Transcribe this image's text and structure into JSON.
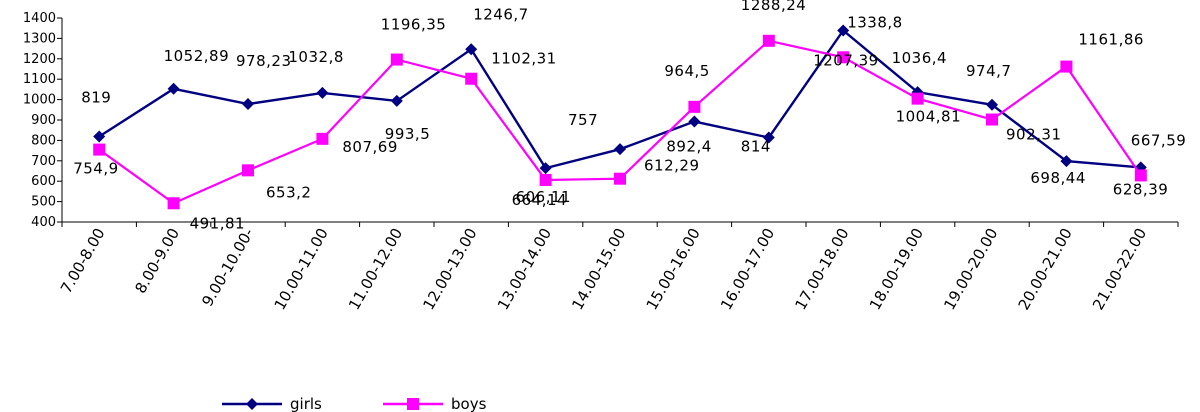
{
  "chart_data": {
    "type": "line",
    "categories": [
      "7.00-8.00",
      "8.00-9.00",
      "9.00-10.00-",
      "10.00-11.00",
      "11.00-12.00",
      "12.00-13.00",
      "13.00-14.00",
      "14.00-15.00",
      "15.00-16.00",
      "16.00-17.00",
      "17.00-18.00",
      "18.00-19.00",
      "19.00-20.00",
      "20.00-21.00",
      "21.00-22.00"
    ],
    "ylim": [
      400,
      1400
    ],
    "yticks": [
      400,
      500,
      600,
      700,
      800,
      900,
      1000,
      1100,
      1200,
      1300,
      1400
    ],
    "grid": false,
    "legend_position": "bottom",
    "series": [
      {
        "name": "girls",
        "color": "#000080",
        "marker": "diamond",
        "values": [
          819,
          1052.89,
          978.23,
          1032.8,
          993.5,
          1246.7,
          664.14,
          757,
          892.4,
          814,
          1338.8,
          1036.4,
          974.7,
          698.44,
          667.59
        ],
        "labels": [
          "819",
          "1052,89",
          "978,23",
          "1032,8",
          "993,5",
          "1246,7",
          "664,14",
          "757",
          "892,4",
          "814",
          "1338,8",
          "1036,4",
          "974,7",
          "698,44",
          "667,59"
        ]
      },
      {
        "name": "boys",
        "color": "#ff00ff",
        "marker": "square",
        "values": [
          754.9,
          491.81,
          653.2,
          807.69,
          1196.35,
          1102.31,
          606.11,
          612.29,
          964.5,
          1288.24,
          1207.39,
          1004.81,
          902.31,
          1161.86,
          628.39
        ],
        "labels": [
          "754,9",
          "491,81",
          "653,2",
          "807,69",
          "1196,35",
          "1102,31",
          "606,11",
          "612,29",
          "964,5",
          "1288,24",
          "1207,39",
          "1004,81",
          "902,31",
          "1161,86",
          "628,39"
        ]
      }
    ]
  }
}
